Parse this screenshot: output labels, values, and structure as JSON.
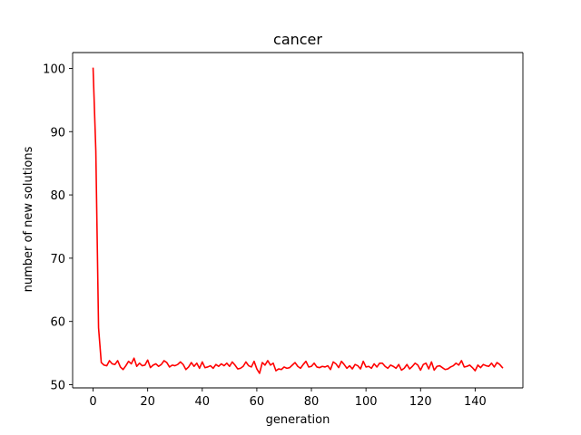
{
  "chart_data": {
    "type": "line",
    "title": "cancer",
    "xlabel": "generation",
    "ylabel": "number of new solutions",
    "xlim": [
      -7.5,
      157.5
    ],
    "ylim": [
      49.5,
      102.5
    ],
    "x_ticks": [
      0,
      20,
      40,
      60,
      80,
      100,
      120,
      140
    ],
    "y_ticks": [
      50,
      60,
      70,
      80,
      90,
      100
    ],
    "grid": false,
    "legend": "none",
    "series": [
      {
        "color": "#ff0000",
        "x": [
          0,
          1,
          2,
          3,
          4,
          5,
          6,
          7,
          8,
          9,
          10,
          11,
          12,
          13,
          14,
          15,
          16,
          17,
          18,
          19,
          20,
          21,
          22,
          23,
          24,
          25,
          26,
          27,
          28,
          29,
          30,
          31,
          32,
          33,
          34,
          35,
          36,
          37,
          38,
          39,
          40,
          41,
          42,
          43,
          44,
          45,
          46,
          47,
          48,
          49,
          50,
          51,
          52,
          53,
          54,
          55,
          56,
          57,
          58,
          59,
          60,
          61,
          62,
          63,
          64,
          65,
          66,
          67,
          68,
          69,
          70,
          71,
          72,
          73,
          74,
          75,
          76,
          77,
          78,
          79,
          80,
          81,
          82,
          83,
          84,
          85,
          86,
          87,
          88,
          89,
          90,
          91,
          92,
          93,
          94,
          95,
          96,
          97,
          98,
          99,
          100,
          101,
          102,
          103,
          104,
          105,
          106,
          107,
          108,
          109,
          110,
          111,
          112,
          113,
          114,
          115,
          116,
          117,
          118,
          119,
          120,
          121,
          122,
          123,
          124,
          125,
          126,
          127,
          128,
          129,
          130,
          131,
          132,
          133,
          134,
          135,
          136,
          137,
          138,
          139,
          140,
          141,
          142,
          143,
          144,
          145,
          146,
          147,
          148,
          149,
          150
        ],
        "y": [
          100,
          87,
          59,
          53.5,
          53.1,
          53.0,
          53.8,
          53.3,
          53.2,
          53.8,
          52.8,
          52.4,
          53.0,
          53.7,
          53.3,
          54.2,
          52.9,
          53.4,
          53.0,
          53.1,
          53.9,
          52.7,
          53.1,
          53.3,
          52.9,
          53.2,
          53.8,
          53.5,
          52.8,
          53.1,
          53.0,
          53.2,
          53.6,
          53.2,
          52.4,
          52.8,
          53.5,
          52.9,
          53.4,
          52.6,
          53.6,
          52.7,
          52.8,
          53.0,
          52.6,
          53.2,
          52.9,
          53.3,
          53.0,
          53.4,
          52.9,
          53.6,
          53.1,
          52.5,
          52.6,
          52.9,
          53.6,
          53.0,
          52.8,
          53.7,
          52.5,
          51.8,
          53.5,
          53.1,
          53.8,
          53.1,
          53.4,
          52.2,
          52.5,
          52.4,
          52.8,
          52.6,
          52.7,
          53.1,
          53.5,
          52.9,
          52.6,
          53.2,
          53.7,
          52.8,
          52.9,
          53.4,
          52.8,
          52.7,
          52.9,
          52.8,
          53.0,
          52.4,
          53.6,
          53.3,
          52.7,
          53.7,
          53.2,
          52.6,
          53.0,
          52.5,
          53.2,
          53.0,
          52.5,
          53.7,
          52.8,
          52.9,
          52.6,
          53.3,
          52.8,
          53.4,
          53.4,
          52.9,
          52.6,
          53.1,
          52.9,
          52.6,
          53.2,
          52.3,
          52.6,
          53.2,
          52.5,
          52.9,
          53.4,
          53.1,
          52.3,
          53.2,
          53.4,
          52.5,
          53.6,
          52.3,
          52.9,
          53.0,
          52.7,
          52.4,
          52.5,
          52.8,
          53.0,
          53.4,
          53.1,
          53.8,
          52.8,
          52.9,
          53.1,
          52.7,
          52.2,
          53.1,
          52.7,
          53.2,
          53.0,
          52.9,
          53.4,
          52.8,
          53.5,
          53.2,
          52.7
        ]
      }
    ]
  }
}
